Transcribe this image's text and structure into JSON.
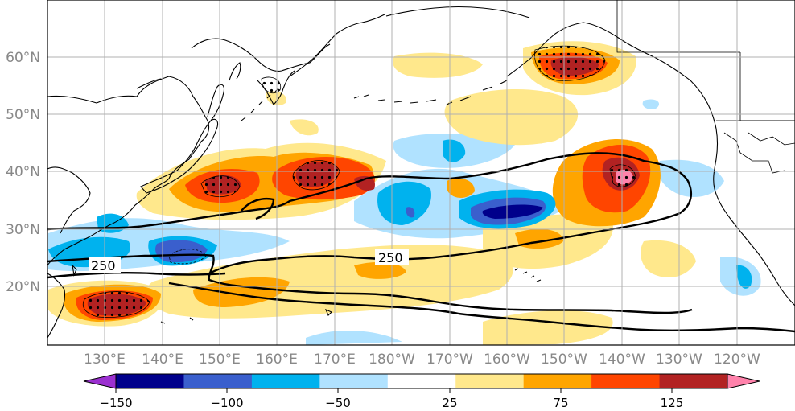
{
  "map": {
    "lat_labels": [
      "60°N",
      "50°N",
      "40°N",
      "30°N",
      "20°N"
    ],
    "lon_labels": [
      "130°E",
      "140°E",
      "150°E",
      "160°E",
      "170°E",
      "180°W",
      "170°W",
      "160°W",
      "150°W",
      "140°W",
      "130°W",
      "120°W"
    ],
    "contour_labels": [
      "250",
      "250"
    ]
  },
  "colorbar": {
    "tick_labels": [
      "−150",
      "−100",
      "−50",
      "25",
      "75",
      "125"
    ],
    "colors": [
      "#9b30d0",
      "#00008b",
      "#3a5fcd",
      "#00b2ee",
      "#b0e2ff",
      "#ffffff",
      "#ffe88c",
      "#ffa500",
      "#ff4500",
      "#b22222",
      "#ff82ab"
    ]
  }
}
